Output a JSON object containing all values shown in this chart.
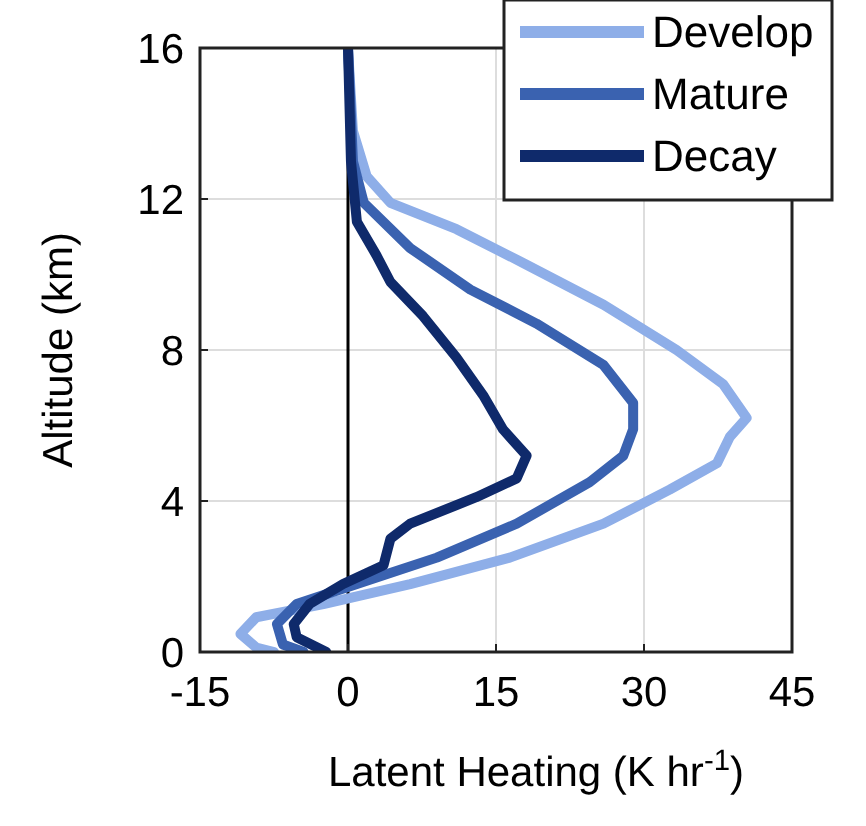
{
  "chart_data": {
    "type": "line",
    "xlabel": "Latent Heating (K hr$^{-1}$)",
    "ylabel": "Altitude (km)",
    "xlim": [
      -15,
      45
    ],
    "xticks": [
      -15,
      0,
      15,
      30,
      45
    ],
    "ylim": [
      0,
      16
    ],
    "yticks": [
      0,
      4,
      8,
      12,
      16
    ],
    "grid": true,
    "legend": "top right",
    "line_style": "solid",
    "ref_lines": [
      {
        "axis": "x",
        "value": 0,
        "color": "#000000"
      }
    ],
    "series": [
      {
        "name": "Develop",
        "color": "#8eaee8",
        "x": [
          0,
          0.5,
          1.9,
          4.3,
          11,
          17.8,
          25.9,
          33.3,
          38,
          40.4,
          38.7,
          37.4,
          32.6,
          25.9,
          16.4,
          6.3,
          -2.5,
          -9.3,
          -10.9,
          -9.3,
          -7.5
        ],
        "values": [
          16,
          13.8,
          12.6,
          11.9,
          11.2,
          10.3,
          9.2,
          8,
          7.1,
          6.2,
          5.7,
          5,
          4.3,
          3.4,
          2.5,
          1.8,
          1.27,
          0.92,
          0.48,
          0.12,
          0
        ]
      },
      {
        "name": "Mature",
        "color": "#3a62b0",
        "x": [
          0,
          0.5,
          1.6,
          6.3,
          12.4,
          19.1,
          25.9,
          28.9,
          28.9,
          27.9,
          24.5,
          17.1,
          9,
          0.9,
          -5.2,
          -7.2,
          -6.6,
          -4.5
        ],
        "values": [
          16,
          13,
          11.9,
          10.7,
          9.6,
          8.7,
          7.6,
          6.6,
          5.9,
          5.2,
          4.5,
          3.4,
          2.5,
          1.8,
          1.27,
          0.74,
          0.2,
          0
        ]
      },
      {
        "name": "Decay",
        "color": "#0f2a6b",
        "x": [
          0,
          0.3,
          0.9,
          2.9,
          4.3,
          7.6,
          11,
          13.7,
          15.7,
          18.1,
          17.1,
          13,
          6.3,
          4.3,
          3.6,
          -0.5,
          -3.9,
          -5.5,
          -5.2,
          -2.2
        ],
        "values": [
          16,
          13,
          11.4,
          10.5,
          9.8,
          8.9,
          7.8,
          6.8,
          5.9,
          5.2,
          4.6,
          4.1,
          3.4,
          3,
          2.3,
          1.8,
          1.27,
          0.74,
          0.39,
          0
        ]
      }
    ]
  }
}
